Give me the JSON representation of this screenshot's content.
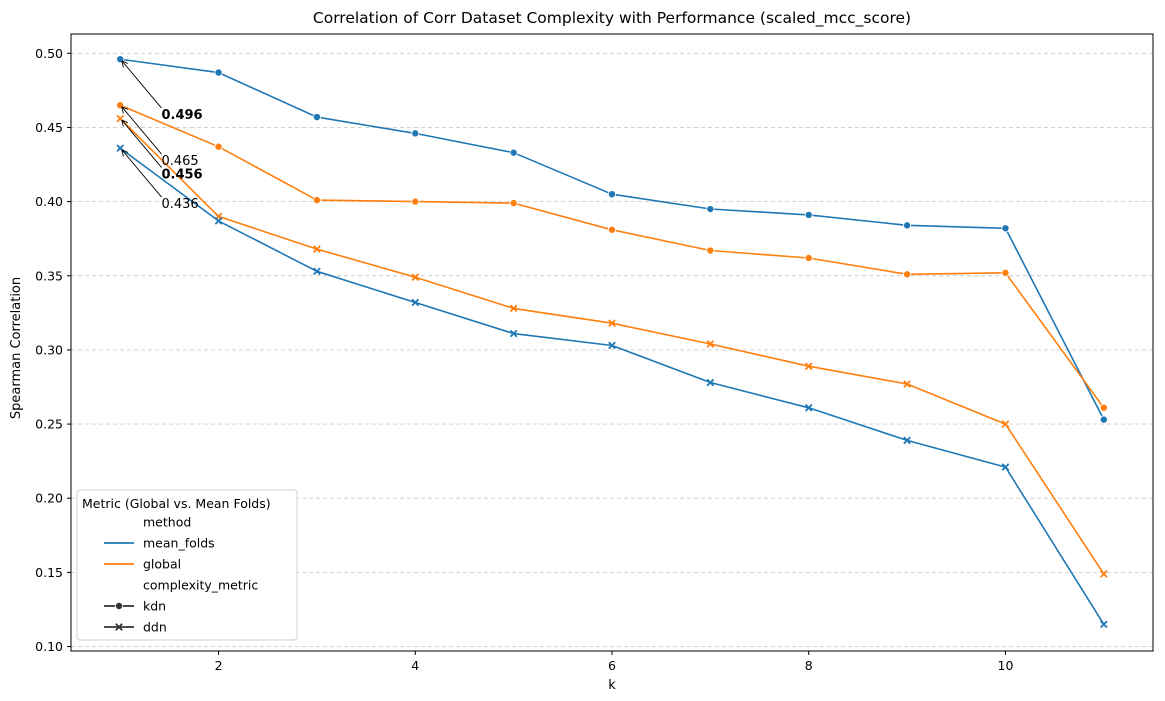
{
  "chart_data": {
    "type": "line",
    "title": "Correlation of Corr Dataset Complexity with Performance (scaled_mcc_score)",
    "xlabel": "k",
    "ylabel": "Spearman Correlation",
    "xlim": [
      0.5,
      11.5
    ],
    "ylim": [
      0.097,
      0.513
    ],
    "xticks": [
      2,
      4,
      6,
      8,
      10
    ],
    "yticks": [
      0.1,
      0.15,
      0.2,
      0.25,
      0.3,
      0.35,
      0.4,
      0.45,
      0.5
    ],
    "ytick_labels": [
      "0.10",
      "0.15",
      "0.20",
      "0.25",
      "0.30",
      "0.35",
      "0.40",
      "0.45",
      "0.50"
    ],
    "grid": "y-dashed",
    "x": [
      1,
      2,
      3,
      4,
      5,
      6,
      7,
      8,
      9,
      10,
      11
    ],
    "series": [
      {
        "method": "mean_folds",
        "complexity_metric": "kdn",
        "color": "#1f77b4",
        "marker": "circle",
        "values": [
          0.496,
          0.487,
          0.457,
          0.446,
          0.433,
          0.405,
          0.395,
          0.391,
          0.384,
          0.382,
          0.253
        ]
      },
      {
        "method": "global",
        "complexity_metric": "kdn",
        "color": "#ff7f0e",
        "marker": "circle",
        "values": [
          0.465,
          0.437,
          0.401,
          0.4,
          0.399,
          0.381,
          0.367,
          0.362,
          0.351,
          0.352,
          0.261
        ]
      },
      {
        "method": "global",
        "complexity_metric": "ddn",
        "color": "#ff7f0e",
        "marker": "x",
        "values": [
          0.456,
          0.39,
          0.368,
          0.349,
          0.328,
          0.318,
          0.304,
          0.289,
          0.277,
          0.25,
          0.149
        ]
      },
      {
        "method": "mean_folds",
        "complexity_metric": "ddn",
        "color": "#1f77b4",
        "marker": "x",
        "values": [
          0.436,
          0.387,
          0.353,
          0.332,
          0.311,
          0.303,
          0.278,
          0.261,
          0.239,
          0.221,
          0.115
        ]
      }
    ],
    "annotations": [
      {
        "text": "0.496",
        "x": 1,
        "y": 0.496,
        "text_x": 1.42,
        "text_y": 0.459,
        "bold": true
      },
      {
        "text": "0.465",
        "x": 1,
        "y": 0.465,
        "text_x": 1.42,
        "text_y": 0.428,
        "bold": false
      },
      {
        "text": "0.456",
        "x": 1,
        "y": 0.456,
        "text_x": 1.42,
        "text_y": 0.419,
        "bold": true
      },
      {
        "text": "0.436",
        "x": 1,
        "y": 0.436,
        "text_x": 1.42,
        "text_y": 0.399,
        "bold": false
      }
    ],
    "legend": {
      "placement": "lower-left",
      "title": "Metric (Global vs. Mean Folds)",
      "entries": [
        {
          "label": "method",
          "kind": "header"
        },
        {
          "label": "mean_folds",
          "kind": "line",
          "color": "#1f77b4"
        },
        {
          "label": "global",
          "kind": "line",
          "color": "#ff7f0e"
        },
        {
          "label": "complexity_metric",
          "kind": "header"
        },
        {
          "label": "kdn",
          "kind": "marker",
          "marker": "circle",
          "color": "#333333"
        },
        {
          "label": "ddn",
          "kind": "marker",
          "marker": "x",
          "color": "#333333"
        }
      ]
    }
  }
}
